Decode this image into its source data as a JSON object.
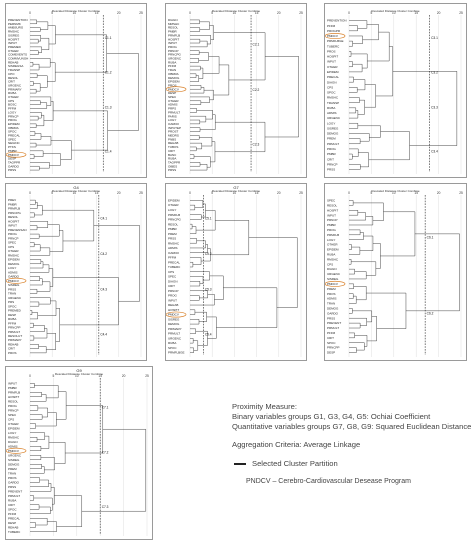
{
  "panels": [
    {
      "id": "p1",
      "title": "",
      "subtitle": "Rescaled Distance Cluster Combine",
      "ticks": [
        "0",
        "5",
        "10",
        "15",
        "20",
        "25"
      ],
      "labels": [
        "PREVENTION",
        "PERNMK",
        "AMBSURG",
        "RMSHC",
        "SISREG",
        "HOSPIT",
        "INPUT",
        "PREMED",
        "OTHER",
        "COMEVENTS",
        "COMMVUNGH",
        "REHAB",
        "SISREGSA",
        "TRANSP",
        "CPO",
        "RESOL",
        "CRIT",
        "URGENC",
        "PRIMARY",
        "RUBA",
        "OTHER",
        "CPS",
        "BOSC",
        "PFFM",
        "LOGY",
        "PRNCP",
        "PROG",
        "EPIDEM",
        "OBRRA",
        "SPOC",
        "PRECAL",
        "SPEC",
        "NEGINC",
        "PTKS",
        "PMBR",
        "PMDCV",
        "DESP",
        "TAOPPR",
        "OARDO",
        "PRSS"
      ],
      "annotations": [
        "C1.1",
        "C1.2",
        "C1.3",
        "C1.4"
      ],
      "highlight": "PMDCV"
    },
    {
      "id": "p2",
      "title": "",
      "subtitle": "Rescaled Distance Cluster Combine",
      "ticks": [
        "0",
        "5",
        "10",
        "15",
        "20",
        "25"
      ],
      "labels": [
        "DIAGN",
        "MMSHC",
        "RESOL",
        "PMBR",
        "PRMFLB",
        "HOSPIT",
        "INPUT",
        "PROG",
        "PRNCP",
        "PRNCPG",
        "URGENC",
        "RUBA",
        "PFFM",
        "TRAN",
        "OBRRA",
        "DEMOG",
        "EPIDEM",
        "PROS",
        "PMDCV",
        "DESP",
        "SPEC",
        "OTHER",
        "ADMIS",
        "PRPS",
        "PRMULT",
        "PARIS",
        "LOGY",
        "OARDO",
        "INPUTEP",
        "PROST",
        "MEDRS",
        "PNBS",
        "REHAB",
        "TUBOS",
        "CRIT",
        "BANC",
        "RUBA",
        "TAOPPR",
        "OIBES",
        "PRSS"
      ],
      "annotations": [
        "C2.1",
        "C2.2",
        "C2.3"
      ],
      "highlight": "PMDCV"
    },
    {
      "id": "p3",
      "title": "",
      "subtitle": "Rescaled Distance Cluster Combine",
      "ticks": [
        "0",
        "5",
        "10",
        "15",
        "20",
        "25"
      ],
      "labels": [
        "PREVENTION",
        "PFFM",
        "PROGPR",
        "PMDCV",
        "PRMFLBGE",
        "TUBERC",
        "PROS",
        "HOSPIT",
        "INPUT",
        "OTHER",
        "EPIDEM",
        "PRECAL",
        "DIAGN",
        "CPS",
        "SPOC",
        "RMSHC",
        "TRANSP",
        "RUBA",
        "ADMIS",
        "URGENC",
        "LOGY",
        "SISREG",
        "DEMOG",
        "PREM",
        "PRMULT",
        "PROG",
        "PMBR",
        "CRIT",
        "PRNCP",
        "PRSS"
      ],
      "annotations": [
        "C3.1",
        "C3.2",
        "C3.3",
        "C3.4"
      ],
      "highlight": "PMDCV"
    },
    {
      "id": "p4",
      "title": "G4",
      "subtitle": "Rescaled Distance Cluster Combine",
      "ticks": [
        "0",
        "5",
        "10",
        "15",
        "20",
        "25"
      ],
      "labels": [
        "PREV",
        "PMBR",
        "PRMFLB",
        "PRNCPG",
        "RESOL",
        "HOSPIT",
        "INPUT",
        "PREVENSAN",
        "PROG",
        "PRNCP",
        "SPEC",
        "CPS",
        "OTHER",
        "RMSHC",
        "EPIDEM",
        "DEMOG",
        "LOGY",
        "ADMIS",
        "OARDO",
        "PMDCV",
        "SISREG",
        "PRSS",
        "TRAN",
        "URGENC",
        "PRS",
        "SPOC",
        "PREMED",
        "DESP",
        "RUBA",
        "PFFM",
        "PRNCPP",
        "PRMULT",
        "RESOLUT",
        "PRIMARY",
        "REHAB",
        "CRIT",
        "PROS"
      ],
      "annotations": [
        "C4.1",
        "C4.2",
        "C4.3",
        "C4.4"
      ],
      "highlight": "PMDCV"
    },
    {
      "id": "p5",
      "title": "G7",
      "subtitle": "Rescaled Distance Cluster Combine",
      "ticks": [
        "0",
        "5",
        "10",
        "15",
        "20",
        "25"
      ],
      "labels": [
        "EPIDEM",
        "OTHER",
        "LOGY",
        "PRMFLB",
        "PRNCPG",
        "RESOL",
        "PMBR",
        "PREM",
        "PRSS",
        "RMSHC",
        "ADMIS",
        "OARDO",
        "PFFM",
        "PRECAL",
        "TUBERC",
        "CPS",
        "SPEC",
        "DIAGN",
        "CRIT",
        "PRNCP",
        "PROG",
        "INPUT",
        "REHAB",
        "HOSPIT",
        "PMDCV",
        "SISREG",
        "DEMOG",
        "PRIMARY",
        "PRMULT",
        "URGENC",
        "RUBA",
        "SPOC",
        "PRMFLBGE"
      ],
      "annotations": [
        "C5.1",
        "C5.2",
        "C5.3",
        "C5.4"
      ],
      "highlight": "PMDCV"
    },
    {
      "id": "p6",
      "title": "",
      "subtitle": "Rescaled Distance Cluster Combine",
      "ticks": [
        "0",
        "5",
        "10",
        "15",
        "20",
        "25"
      ],
      "labels": [
        "SPEC",
        "RESOL",
        "HOSPIT",
        "INPUT",
        "PRNCP",
        "PMBR",
        "PROG",
        "PRMFLB",
        "LOGY",
        "OTHER",
        "EPIDEM",
        "RUBA",
        "RMSHC",
        "CPS",
        "DIAGN",
        "URGENC",
        "SISREG",
        "PMDCV",
        "PREM",
        "PROS",
        "ADMIS",
        "TRAN",
        "DEMOG",
        "OARDO",
        "PRSS",
        "PREVENT",
        "PRMULT",
        "PFFM",
        "CRIT",
        "SPOC",
        "PRNCPP",
        "DESP"
      ],
      "annotations": [
        "C6.1",
        "C6.2"
      ],
      "highlight": "PMDCV"
    },
    {
      "id": "p7",
      "title": "G9",
      "subtitle": "Rescaled Distance Cluster Combine",
      "ticks": [
        "0",
        "5",
        "10",
        "15",
        "20",
        "25"
      ],
      "labels": [
        "INPUT",
        "PMBR",
        "PRMFLB",
        "HOSPIT",
        "RESOL",
        "PROG",
        "PRNCP",
        "SPEC",
        "CPS",
        "OTHER",
        "EPIDEM",
        "LOGY",
        "RMSHC",
        "DIAGN",
        "ADMIS",
        "PMDCV",
        "URGENC",
        "SISREG",
        "DEMOG",
        "PREM",
        "TRAN",
        "PROS",
        "OARDO",
        "PRSS",
        "PREVENT",
        "PRMULT",
        "RUBA",
        "CRIT",
        "SPOC",
        "PFFM",
        "PRECAL",
        "DESP",
        "REHAB",
        "TUBERC"
      ],
      "annotations": [
        "C7.1",
        "C7.2",
        "C7.3"
      ],
      "highlight": "PMDCV"
    }
  ],
  "legend": {
    "title": "Proximity Measure:",
    "binary": "Binary variables groups G1, G3, G4, G5: Ochiai Coefficient",
    "quantitative": "Quantitative variables groups G7, G8, G9: Squared Euclidean Distance",
    "aggregation": "Aggregation Criteria: Average Linkage",
    "partition": "Selected Cluster Partition",
    "program": "PNDCV – Cerebro-Cardiovascular Desease Program"
  },
  "colors": {
    "line": "#333333",
    "dashed": "#222222",
    "highlight": "#d9822b",
    "panel_bg": "#ffffff",
    "legend_text": "#444444"
  }
}
